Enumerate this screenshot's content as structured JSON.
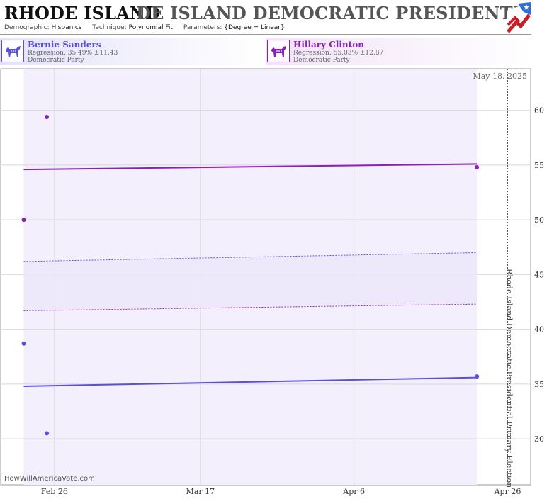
{
  "header": {
    "title_main": "RHODE ISLAND",
    "title_ghost": "DE ISLAND DEMOCRATIC PRESIDENTIAL PRIMA",
    "meta": [
      {
        "key": "Demographic:",
        "value": "Hispanics"
      },
      {
        "key": "Technique:",
        "value": "Polynomial Fit"
      },
      {
        "key": "Parameters:",
        "value": "{Degree = Linear}"
      }
    ]
  },
  "candidates": [
    {
      "name": "Bernie Sanders",
      "regression": "Regression: 35.49% ±11.43",
      "party": "Democratic Party",
      "color": "#5b4fd6",
      "icon": "donkey-icon"
    },
    {
      "name": "Hillary Clinton",
      "regression": "Regression: 55.03% ±12.87",
      "party": "Democratic Party",
      "color": "#8b20b8",
      "icon": "donkey-icon"
    }
  ],
  "colors": {
    "sanders": "#5b4fd6",
    "clinton": "#8b20b8",
    "band": "#f3effc",
    "grid": "#d8d8d8",
    "axis_text": "#333333"
  },
  "chart_data": {
    "type": "scatter",
    "title": "",
    "xlabel": "",
    "ylabel": "",
    "date_label": "May 18, 2025",
    "vertical_label": "Rhode Island Democratic Presidential Primary Election",
    "watermark": "HowWillAmericaVote.com",
    "x_range": [
      "2025-02-19",
      "2025-04-29"
    ],
    "ylim": [
      25.8,
      63.8
    ],
    "y_ticks": [
      30,
      35,
      40,
      45,
      50,
      55,
      60
    ],
    "x_ticks": [
      {
        "date": "2025-02-26",
        "label": "Feb 26"
      },
      {
        "date": "2025-03-17",
        "label": "Mar 17"
      },
      {
        "date": "2025-04-06",
        "label": "Apr 6"
      },
      {
        "date": "2025-04-26",
        "label": "Apr 26"
      }
    ],
    "band_range": [
      "2025-02-22",
      "2025-04-22"
    ],
    "election_date": "2025-04-26",
    "series": [
      {
        "name": "Bernie Sanders",
        "color": "#5b4fd6",
        "points": [
          {
            "x": "2025-02-22",
            "y": 38.7
          },
          {
            "x": "2025-02-25",
            "y": 30.5
          },
          {
            "x": "2025-04-22",
            "y": 35.7
          }
        ],
        "fit": [
          {
            "x": "2025-02-22",
            "y": 34.8
          },
          {
            "x": "2025-04-22",
            "y": 35.6
          }
        ],
        "upper": [
          {
            "x": "2025-02-22",
            "y": 46.2
          },
          {
            "x": "2025-04-22",
            "y": 47.0
          }
        ]
      },
      {
        "name": "Hillary Clinton",
        "color": "#8b20b8",
        "points": [
          {
            "x": "2025-02-22",
            "y": 50.0
          },
          {
            "x": "2025-02-25",
            "y": 59.4
          },
          {
            "x": "2025-04-22",
            "y": 54.8
          }
        ],
        "fit": [
          {
            "x": "2025-02-22",
            "y": 54.6
          },
          {
            "x": "2025-04-22",
            "y": 55.1
          }
        ],
        "lower": [
          {
            "x": "2025-02-22",
            "y": 41.7
          },
          {
            "x": "2025-04-22",
            "y": 42.3
          }
        ]
      }
    ]
  }
}
